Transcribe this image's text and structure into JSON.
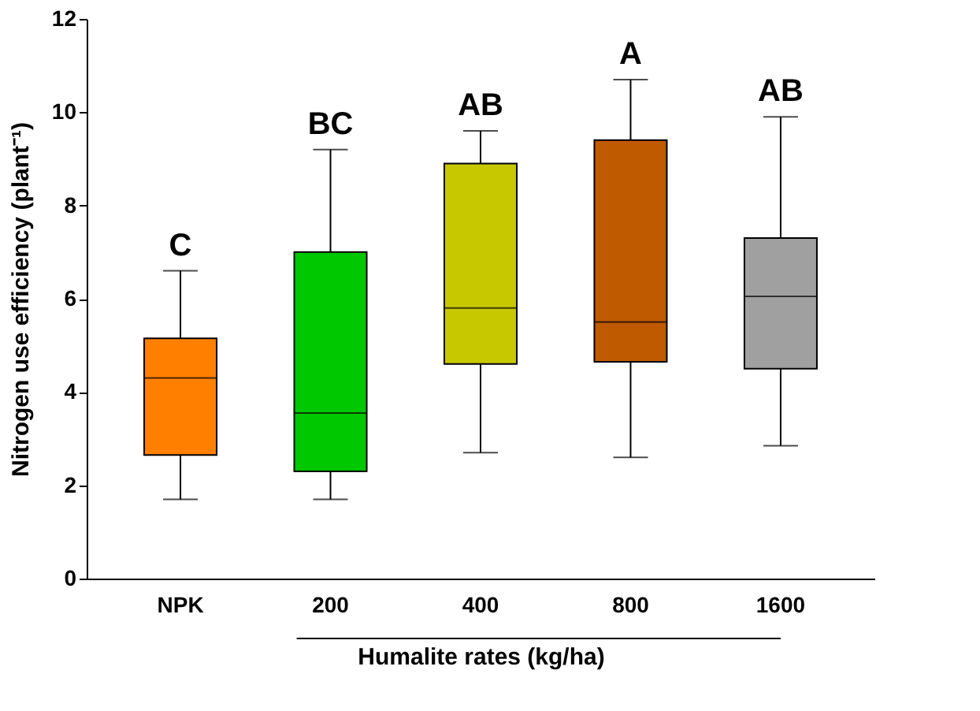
{
  "chart_data": {
    "type": "box",
    "xlabel": "Humalite rates (kg/ha)",
    "ylabel": "Nitrogen use efficiency (plant⁻¹)",
    "categories": [
      "NPK",
      "200",
      "400",
      "800",
      "1600"
    ],
    "colors": [
      "#ff8000",
      "#00c800",
      "#c8c800",
      "#c05a00",
      "#a0a0a0"
    ],
    "boxes": [
      {
        "low": 1.7,
        "q1": 2.65,
        "median": 4.3,
        "q3": 5.15,
        "high": 6.6
      },
      {
        "low": 1.7,
        "q1": 2.3,
        "median": 3.55,
        "q3": 7.0,
        "high": 9.2
      },
      {
        "low": 2.7,
        "q1": 4.6,
        "median": 5.8,
        "q3": 8.9,
        "high": 9.6
      },
      {
        "low": 2.6,
        "q1": 4.65,
        "median": 5.5,
        "q3": 9.4,
        "high": 10.7
      },
      {
        "low": 2.85,
        "q1": 4.5,
        "median": 6.05,
        "q3": 7.3,
        "high": 9.9
      }
    ],
    "annotations": [
      {
        "text": "C",
        "x": "NPK",
        "y": 6.6
      },
      {
        "text": "BC",
        "x": "200",
        "y": 9.2
      },
      {
        "text": "AB",
        "x": "400",
        "y": 9.6
      },
      {
        "text": "A",
        "x": "800",
        "y": 10.7
      },
      {
        "text": "AB",
        "x": "1600",
        "y": 9.9
      }
    ],
    "ylim": [
      0,
      12
    ],
    "yticks": [
      0,
      2,
      4,
      6,
      8,
      10,
      12
    ],
    "grid": false,
    "legend": false
  }
}
